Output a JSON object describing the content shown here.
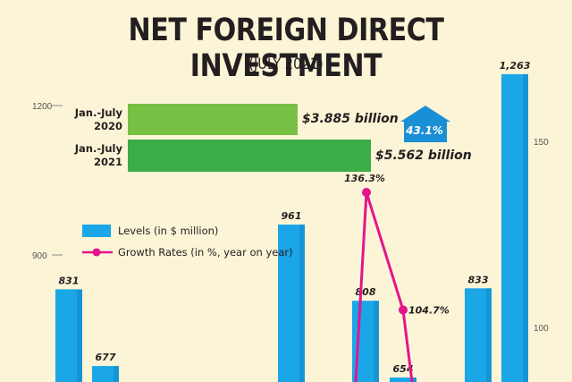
{
  "title": "NET FOREIGN DIRECT INVESTMENT",
  "subtitle": "(JULY 2021)",
  "comparison": {
    "items": [
      {
        "label_line1": "Jan.-July",
        "label_line2": "2020",
        "value_label": "$3.885 billion",
        "value": 3.885
      },
      {
        "label_line1": "Jan.-July",
        "label_line2": "2021",
        "value_label": "$5.562 billion",
        "value": 5.562
      }
    ],
    "growth_badge": "43.1%"
  },
  "legend": {
    "levels": "Levels (in $ million)",
    "growth": "Growth Rates (in %, year on year)"
  },
  "colors": {
    "bar": "#1ba6e8",
    "bar_shade": "#1387c4",
    "line": "#e5148c",
    "green_light": "#78c043",
    "green_dark": "#3aac48",
    "arrow": "#1b8fd6",
    "background": "#fbf4d6"
  },
  "chart_data": {
    "type": "bar",
    "title": "NET FOREIGN DIRECT INVESTMENT",
    "subtitle": "(JULY 2021)",
    "left_axis": {
      "ticks": [
        "1200",
        "900"
      ],
      "ylim": [
        450,
        1263
      ]
    },
    "right_axis": {
      "ticks": [
        "150",
        "100"
      ],
      "ylim": [
        80,
        210
      ]
    },
    "series": [
      {
        "name": "Levels (in $ million)",
        "type": "bar",
        "axis": "left",
        "values": [
          831,
          677,
          null,
          null,
          null,
          null,
          null,
          961,
          null,
          808,
          654,
          null,
          833,
          1263
        ],
        "labels": [
          "831",
          "677",
          "",
          "",
          "",
          "",
          "",
          "961",
          "",
          "808",
          "654",
          "",
          "833",
          "1,263"
        ]
      },
      {
        "name": "Growth Rates (in %, year on year)",
        "type": "line",
        "axis": "right",
        "values": [
          null,
          null,
          null,
          null,
          null,
          null,
          null,
          null,
          null,
          null,
          136.3,
          104.7,
          null,
          null
        ],
        "labels": [
          "",
          "",
          "",
          "",
          "",
          "",
          "",
          "",
          "",
          "",
          "136.3%",
          "104.7%",
          "",
          ""
        ]
      }
    ]
  }
}
